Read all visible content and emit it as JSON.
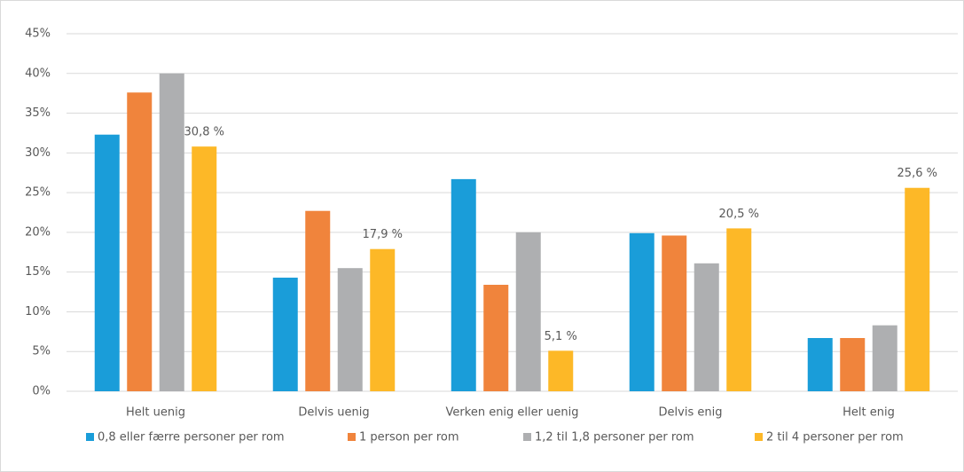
{
  "chart_data": {
    "type": "bar",
    "categories": [
      "Helt uenig",
      "Delvis uenig",
      "Verken enig eller uenig",
      "Delvis enig",
      "Helt enig"
    ],
    "series": [
      {
        "name": "0,8 eller færre personer per rom",
        "color": "#1a9dd9",
        "values": [
          32.3,
          14.3,
          26.7,
          19.9,
          6.7
        ]
      },
      {
        "name": "1 person per rom",
        "color": "#f0843c",
        "values": [
          37.6,
          22.7,
          13.4,
          19.6,
          6.7
        ]
      },
      {
        "name": "1,2 til 1,8 personer per rom",
        "color": "#aeafb1",
        "values": [
          40.0,
          15.5,
          20.0,
          16.1,
          8.3
        ]
      },
      {
        "name": "2 til 4 personer per rom",
        "color": "#fdb827",
        "values": [
          30.8,
          17.9,
          5.1,
          20.5,
          25.6
        ],
        "value_labels": [
          "30,8 %",
          "17,9 %",
          "5,1 %",
          "20,5 %",
          "25,6 %"
        ]
      }
    ],
    "ylim": [
      0,
      45
    ],
    "yticks": [
      {
        "value": 0,
        "label": "0%"
      },
      {
        "value": 5,
        "label": "5%"
      },
      {
        "value": 10,
        "label": "10%"
      },
      {
        "value": 15,
        "label": "15%"
      },
      {
        "value": 20,
        "label": "20%"
      },
      {
        "value": 25,
        "label": "25%"
      },
      {
        "value": 30,
        "label": "30%"
      },
      {
        "value": 35,
        "label": "35%"
      },
      {
        "value": 40,
        "label": "40%"
      },
      {
        "value": 45,
        "label": "45%"
      }
    ],
    "grid": true,
    "legend": "bottom"
  }
}
